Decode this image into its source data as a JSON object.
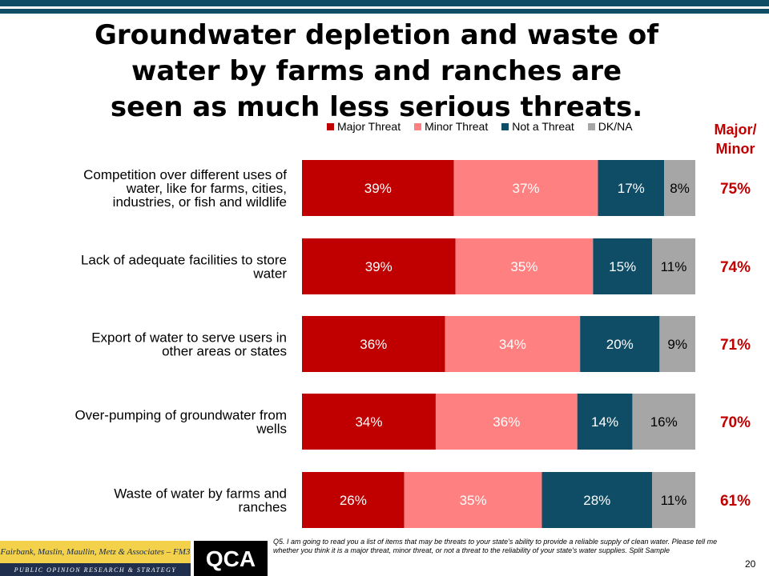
{
  "title_lines": [
    "Groundwater depletion and waste of",
    "water by farms and ranches are",
    "seen as much less serious threats."
  ],
  "side_header": {
    "line1": "Major/",
    "line2": "Minor"
  },
  "colors": {
    "major": "#c00000",
    "minor": "#ff8080",
    "not": "#0f4c66",
    "dkna": "#a6a6a6",
    "accent": "#c00000",
    "topbar": "#0f4c66"
  },
  "chart_data": {
    "type": "bar",
    "orientation": "horizontal",
    "stacked": true,
    "categories": [
      [
        "Competition  over different uses of",
        "water, like for farms, cities,",
        "industries, or fish and wildlife"
      ],
      [
        "Lack of adequate facilities to store",
        "water"
      ],
      [
        "Export of water to serve users in",
        "other areas or states"
      ],
      [
        "Over-pumping  of groundwater from",
        "wells"
      ],
      [
        "Waste of water by farms and",
        "ranches"
      ]
    ],
    "series": [
      {
        "name": "Major Threat",
        "values": [
          39,
          39,
          36,
          34,
          26
        ],
        "labels": [
          "39%",
          "39%",
          "36%",
          "34%",
          "26%"
        ]
      },
      {
        "name": "Minor Threat",
        "values": [
          37,
          35,
          34,
          36,
          35
        ],
        "labels": [
          "37%",
          "35%",
          "34%",
          "36%",
          "35%"
        ]
      },
      {
        "name": "Not a Threat",
        "values": [
          17,
          15,
          20,
          14,
          28
        ],
        "labels": [
          "17%",
          "15%",
          "20%",
          "14%",
          "28%"
        ]
      },
      {
        "name": "DK/NA",
        "values": [
          8,
          11,
          9,
          16,
          11
        ],
        "labels": [
          "8%",
          "11%",
          "9%",
          "16%",
          "11%"
        ]
      }
    ],
    "major_minor": [
      "75%",
      "74%",
      "71%",
      "70%",
      "61%"
    ],
    "legend_position": "top",
    "xlim": [
      0,
      100
    ]
  },
  "footer": {
    "logo1_top": "Fairbank, Maslin, Maullin, Metz & Associates – FM3",
    "logo1_bottom": "PUBLIC OPINION RESEARCH & STRATEGY",
    "logo2": "QCA",
    "footnote": "Q5. I am going to read you a list of items that may be threats to your state's ability to provide a reliable supply of clean water.  Please tell me whether you think it is a major threat, minor threat, or not a threat to the reliability of your state's water supplies. Split Sample",
    "page_number": "20"
  }
}
